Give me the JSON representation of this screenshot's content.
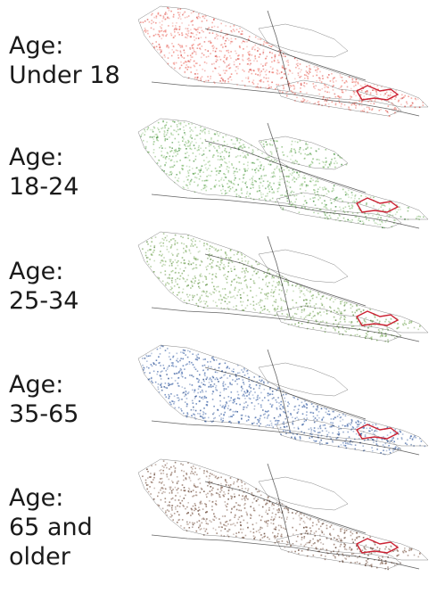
{
  "panels": [
    {
      "label": "Age:\nUnder 18",
      "color": "#f0847a",
      "dark": "#d9534f"
    },
    {
      "label": "Age:\n18-24",
      "color": "#8fc27f",
      "dark": "#3f8f3a"
    },
    {
      "label": "Age:\n25-34",
      "color": "#8ab46f",
      "dark": "#5f8f45"
    },
    {
      "label": "Age:\n35-65",
      "color": "#4b6fae",
      "dark": "#2c4f8f"
    },
    {
      "label": "Age:\n65 and\nolder",
      "color": "#8a6a5a",
      "dark": "#5a3a2a"
    }
  ],
  "colors": {
    "outline": "#222222",
    "highlight": "#cc2233"
  }
}
